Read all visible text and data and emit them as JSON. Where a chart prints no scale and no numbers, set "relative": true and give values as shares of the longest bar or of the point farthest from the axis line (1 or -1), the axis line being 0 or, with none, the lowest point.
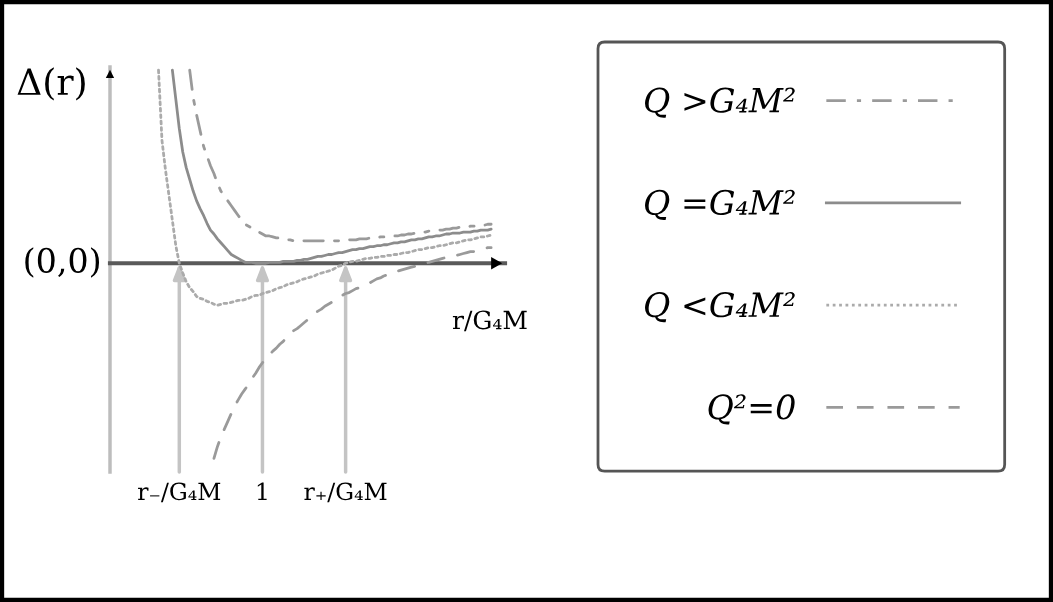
{
  "chart_data": {
    "type": "line",
    "relative": true,
    "ylabel": "Δ(r)",
    "xlabel": "r/G₄M",
    "categories": [
      null,
      null,
      null,
      null,
      null,
      null,
      null,
      null,
      null,
      null,
      null,
      null,
      null,
      null,
      null,
      null,
      null,
      null,
      null,
      null,
      "r₋/G₄M",
      null,
      null,
      null,
      null,
      null,
      null,
      null,
      null,
      null,
      null,
      null,
      null,
      null,
      null,
      null,
      null,
      null,
      null,
      null,
      null,
      null,
      null,
      null,
      "1",
      null,
      null,
      null,
      null,
      null,
      null,
      null,
      null,
      null,
      null,
      null,
      null,
      null,
      null,
      null,
      null,
      null,
      null,
      null,
      null,
      null,
      null,
      null,
      "r₊/G₄M",
      null,
      null,
      null,
      null,
      null,
      null,
      null,
      null,
      null,
      null,
      null,
      null,
      null,
      null,
      null,
      null,
      null,
      null,
      null,
      null,
      null,
      null,
      null,
      null,
      null,
      null,
      null,
      null,
      null,
      null,
      null,
      null,
      null,
      null,
      null,
      null,
      null,
      null,
      null,
      null,
      null,
      null,
      null,
      null,
      null,
      null
    ],
    "tick_labels": "x",
    "legend": "right",
    "annotations": [
      "(0,0)"
    ],
    "series": [
      {
        "name": "Q >G₄M²",
        "color": "#9a9a9a",
        "line_style": "dashdot",
        "values": [
          null,
          null,
          null,
          null,
          null,
          null,
          null,
          null,
          null,
          null,
          null,
          null,
          null,
          null,
          null,
          null,
          null,
          null,
          null,
          null,
          null,
          null,
          null,
          0.99,
          0.85,
          0.76,
          0.68,
          0.6,
          0.55,
          0.5,
          0.46,
          0.41,
          0.37,
          0.345,
          0.32,
          0.295,
          0.27,
          0.245,
          0.22,
          0.2,
          0.19,
          0.18,
          0.17,
          0.16,
          0.15,
          0.14,
          0.14,
          0.135,
          0.13,
          0.13,
          0.125,
          0.12,
          0.12,
          0.115,
          0.115,
          0.115,
          0.115,
          0.115,
          0.115,
          0.115,
          0.115,
          0.115,
          0.115,
          0.115,
          0.115,
          0.115,
          0.115,
          0.115,
          0.115,
          0.12,
          0.12,
          0.12,
          0.125,
          0.125,
          0.125,
          0.13,
          0.13,
          0.13,
          0.135,
          0.135,
          0.135,
          0.14,
          0.14,
          0.14,
          0.145,
          0.145,
          0.15,
          0.15,
          0.155,
          0.155,
          0.16,
          0.16,
          0.165,
          0.165,
          0.17,
          0.17,
          0.17,
          0.175,
          0.175,
          0.18,
          0.18,
          0.185,
          0.185,
          0.185,
          0.19,
          0.19,
          0.195,
          0.195,
          0.195,
          0.2,
          0.2,
          null,
          null,
          null,
          null
        ]
      },
      {
        "name": "Q =G₄M²",
        "color": "#8c8c8c",
        "line_style": "solid",
        "values": [
          null,
          null,
          null,
          null,
          null,
          null,
          null,
          null,
          null,
          null,
          null,
          null,
          null,
          null,
          null,
          null,
          null,
          null,
          0.99,
          0.84,
          0.69,
          0.57,
          0.49,
          0.43,
          0.37,
          0.32,
          0.28,
          0.245,
          0.205,
          0.17,
          0.15,
          0.125,
          0.105,
          0.085,
          0.065,
          0.045,
          0.035,
          0.025,
          0.015,
          0.005,
          0.005,
          0.005,
          0,
          0,
          0,
          0,
          0.005,
          0.005,
          0.005,
          0.005,
          0.01,
          0.01,
          0.01,
          0.01,
          0.015,
          0.015,
          0.02,
          0.02,
          0.025,
          0.03,
          0.035,
          0.035,
          0.04,
          0.045,
          0.045,
          0.05,
          0.055,
          0.055,
          0.06,
          0.065,
          0.07,
          0.07,
          0.075,
          0.075,
          0.08,
          0.085,
          0.085,
          0.09,
          0.09,
          0.095,
          0.095,
          0.1,
          0.105,
          0.105,
          0.11,
          0.11,
          0.115,
          0.12,
          0.12,
          0.125,
          0.125,
          0.13,
          0.135,
          0.135,
          0.14,
          0.14,
          0.145,
          0.15,
          0.15,
          0.155,
          0.155,
          0.155,
          0.16,
          0.16,
          0.16,
          0.165,
          0.165,
          0.17,
          0.17,
          0.17,
          0.175,
          null,
          null,
          null,
          null
        ]
      },
      {
        "name": "Q <G₄M²",
        "color": "#ababab",
        "line_style": "dotted",
        "values": [
          null,
          null,
          null,
          null,
          null,
          null,
          null,
          null,
          null,
          null,
          null,
          null,
          null,
          null,
          0.99,
          0.63,
          0.48,
          0.35,
          0.22,
          0.09,
          0,
          -0.05,
          -0.095,
          -0.125,
          -0.145,
          -0.17,
          -0.18,
          -0.185,
          -0.195,
          -0.2,
          -0.21,
          -0.215,
          -0.21,
          -0.205,
          -0.205,
          -0.2,
          -0.195,
          -0.19,
          -0.19,
          -0.185,
          -0.18,
          -0.17,
          -0.165,
          -0.165,
          -0.155,
          -0.15,
          -0.145,
          -0.14,
          -0.13,
          -0.125,
          -0.12,
          -0.11,
          -0.105,
          -0.1,
          -0.095,
          -0.085,
          -0.08,
          -0.075,
          -0.07,
          -0.065,
          -0.055,
          -0.05,
          -0.045,
          -0.04,
          -0.035,
          -0.025,
          -0.015,
          -0.01,
          0,
          0.005,
          0.01,
          0.01,
          0.015,
          0.02,
          0.025,
          0.025,
          0.03,
          0.03,
          0.035,
          0.035,
          0.04,
          0.04,
          0.045,
          0.045,
          0.05,
          0.055,
          0.055,
          0.06,
          0.065,
          0.07,
          0.07,
          0.075,
          0.08,
          0.08,
          0.085,
          0.09,
          0.09,
          0.095,
          0.1,
          0.105,
          0.105,
          0.11,
          0.115,
          0.12,
          0.12,
          0.125,
          0.13,
          0.135,
          0.135,
          0.14,
          0.145,
          null,
          null,
          null,
          null
        ]
      },
      {
        "name": "Q²=0",
        "color": "#9a9a9a",
        "line_style": "dashed",
        "values": [
          null,
          null,
          null,
          null,
          null,
          null,
          null,
          null,
          null,
          null,
          null,
          null,
          null,
          null,
          null,
          null,
          null,
          null,
          null,
          null,
          null,
          null,
          null,
          null,
          null,
          null,
          null,
          null,
          null,
          null,
          -1.0,
          -0.94,
          -0.89,
          -0.85,
          -0.81,
          -0.77,
          -0.73,
          -0.7,
          -0.67,
          -0.645,
          -0.62,
          -0.59,
          -0.565,
          -0.535,
          -0.51,
          -0.485,
          -0.47,
          -0.45,
          -0.435,
          -0.415,
          -0.4,
          -0.38,
          -0.365,
          -0.345,
          -0.335,
          -0.32,
          -0.305,
          -0.29,
          -0.275,
          -0.26,
          -0.245,
          -0.235,
          -0.22,
          -0.21,
          -0.2,
          -0.19,
          -0.18,
          -0.165,
          -0.155,
          -0.15,
          -0.14,
          -0.13,
          -0.125,
          -0.115,
          -0.105,
          -0.1,
          -0.09,
          -0.08,
          -0.075,
          -0.065,
          -0.06,
          -0.055,
          -0.05,
          -0.04,
          -0.035,
          -0.03,
          -0.025,
          -0.02,
          -0.015,
          -0.01,
          -0.005,
          0,
          0.005,
          0.01,
          0.015,
          0.02,
          0.025,
          0.03,
          0.035,
          0.04,
          0.04,
          0.045,
          0.05,
          0.055,
          0.06,
          0.06,
          0.065,
          0.07,
          0.075,
          0.08,
          0.08,
          null,
          null,
          null,
          null
        ]
      }
    ]
  }
}
